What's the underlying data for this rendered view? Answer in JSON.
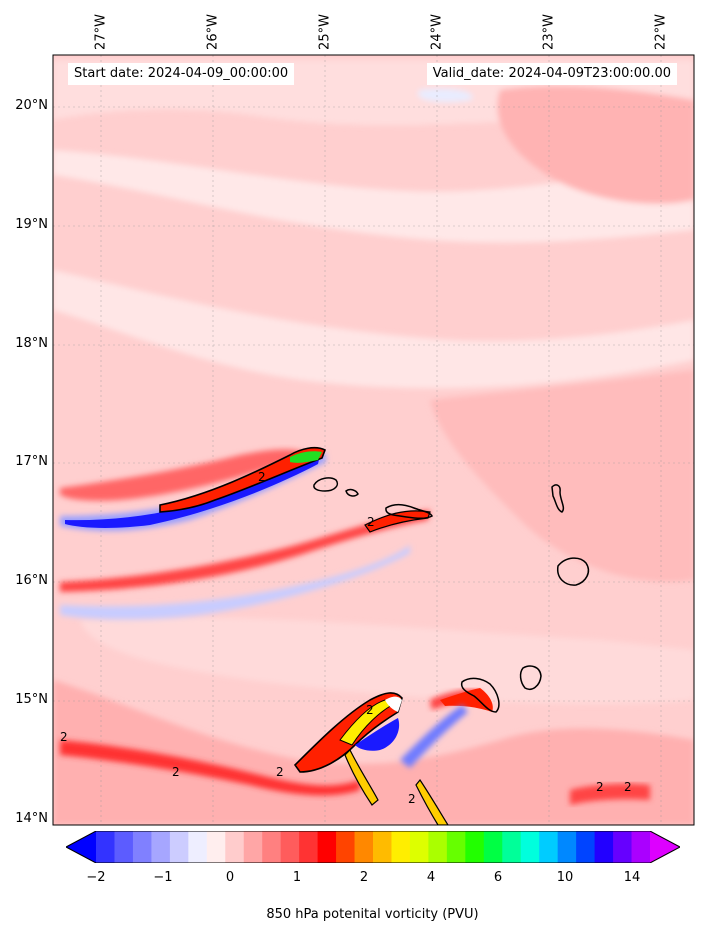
{
  "map": {
    "start_date": "Start date: 2024-04-09_00:00:00",
    "valid_date": "Valid_date: 2024-04-09T23:00:00.00",
    "lon_labels": [
      "27°W",
      "26°W",
      "25°W",
      "24°W",
      "23°W",
      "22°W"
    ],
    "lat_labels": [
      "20°N",
      "19°N",
      "18°N",
      "17°N",
      "16°N",
      "15°N",
      "14°N"
    ],
    "contour_labels": [
      "2",
      "2",
      "2",
      "2",
      "2",
      "2",
      "2",
      "2",
      "2"
    ]
  },
  "colorbar": {
    "title": "850 hPa potenital vorticity (PVU)",
    "ticks": [
      "−2",
      "−1",
      "0",
      "1",
      "2",
      "4",
      "6",
      "10",
      "14"
    ],
    "colors": [
      "#0000ff",
      "#3333ff",
      "#5c5cff",
      "#8080ff",
      "#a6a6ff",
      "#ccccff",
      "#eeeeff",
      "#ffeeee",
      "#ffcccc",
      "#ffa6a6",
      "#ff8080",
      "#ff5c5c",
      "#ff3333",
      "#ff0000",
      "#ff4400",
      "#ff8800",
      "#ffbb00",
      "#ffee00",
      "#ddff00",
      "#aaff00",
      "#66ff00",
      "#22ff00",
      "#00ff44",
      "#00ff99",
      "#00ffdd",
      "#00ccff",
      "#0088ff",
      "#0044ff",
      "#2200ff",
      "#6600ff",
      "#aa00ff",
      "#dd00ff"
    ]
  }
}
